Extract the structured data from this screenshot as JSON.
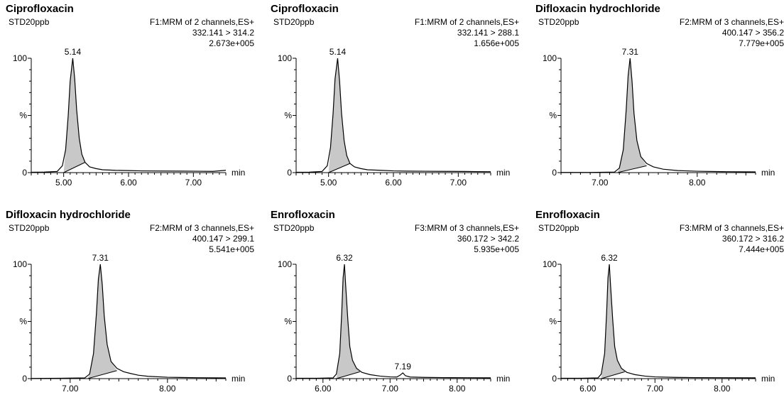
{
  "chart_data": [
    {
      "type": "line",
      "title": "Ciprofloxacin",
      "sample": "STD20ppb",
      "channel": "F1:MRM of 2 channels,ES+",
      "transition": "332.141 > 314.2",
      "intensity": "2.673e+005",
      "xlabel": "min",
      "xlim": [
        4.5,
        7.5
      ],
      "xticks": [
        "5.00",
        "6.00",
        "7.00"
      ],
      "xtick_values": [
        5.0,
        6.0,
        7.0
      ],
      "ylim": [
        0,
        100
      ],
      "yticks": [
        "0",
        "%",
        "100"
      ],
      "peaks": [
        {
          "x": 5.14,
          "label": "5.14",
          "height": 100
        }
      ],
      "series": [
        {
          "x": [
            4.5,
            4.7,
            4.9,
            4.98,
            5.03,
            5.07,
            5.1,
            5.14,
            5.17,
            5.2,
            5.24,
            5.28,
            5.33,
            5.4,
            5.5,
            5.6,
            5.8,
            6.0,
            6.2,
            6.5,
            6.8,
            7.1,
            7.3,
            7.5
          ],
          "values": [
            0.3,
            0.5,
            1,
            6,
            20,
            50,
            80,
            100,
            82,
            55,
            30,
            16,
            9,
            5,
            3.5,
            2.5,
            2,
            1.8,
            1.5,
            1.4,
            1.3,
            1.2,
            1.1,
            2
          ]
        }
      ],
      "baseline": [
        [
          5.0,
          0
        ],
        [
          5.33,
          9
        ]
      ]
    },
    {
      "type": "line",
      "title": "Ciprofloxacin",
      "sample": "STD20ppb",
      "channel": "F1:MRM of 2 channels,ES+",
      "transition": "332.141 > 288.1",
      "intensity": "1.656e+005",
      "xlabel": "min",
      "xlim": [
        4.5,
        7.5
      ],
      "xticks": [
        "5.00",
        "6.00",
        "7.00"
      ],
      "xtick_values": [
        5.0,
        6.0,
        7.0
      ],
      "ylim": [
        0,
        100
      ],
      "yticks": [
        "0",
        "%",
        "100"
      ],
      "peaks": [
        {
          "x": 5.14,
          "label": "5.14",
          "height": 100
        }
      ],
      "series": [
        {
          "x": [
            4.5,
            4.7,
            4.9,
            4.98,
            5.03,
            5.07,
            5.1,
            5.14,
            5.17,
            5.2,
            5.24,
            5.28,
            5.33,
            5.4,
            5.5,
            5.6,
            5.8,
            6.0,
            6.2,
            6.5,
            6.8,
            7.1,
            7.3,
            7.5
          ],
          "values": [
            0.3,
            0.4,
            1,
            6,
            22,
            52,
            82,
            100,
            80,
            52,
            28,
            15,
            8,
            5,
            3.5,
            2.5,
            2,
            1.5,
            1.3,
            1.2,
            1.1,
            1,
            0.9,
            0.8
          ]
        }
      ],
      "baseline": [
        [
          5.0,
          0
        ],
        [
          5.33,
          8
        ]
      ]
    },
    {
      "type": "line",
      "title": "Difloxacin hydrochloride",
      "sample": "STD20ppb",
      "channel": "F2:MRM of 3 channels,ES+",
      "transition": "400.147 > 356.2",
      "intensity": "7.779e+005",
      "xlabel": "min",
      "xlim": [
        6.6,
        8.6
      ],
      "xticks": [
        "7.00",
        "8.00"
      ],
      "xtick_values": [
        7.0,
        8.0
      ],
      "ylim": [
        0,
        100
      ],
      "yticks": [
        "0",
        "%",
        "100"
      ],
      "peaks": [
        {
          "x": 7.31,
          "label": "7.31",
          "height": 100
        }
      ],
      "series": [
        {
          "x": [
            6.6,
            6.9,
            7.15,
            7.2,
            7.24,
            7.27,
            7.29,
            7.31,
            7.33,
            7.35,
            7.38,
            7.42,
            7.48,
            7.55,
            7.65,
            7.8,
            8.0,
            8.3,
            8.6
          ],
          "values": [
            0.2,
            0.2,
            0.5,
            4,
            20,
            55,
            85,
            100,
            80,
            52,
            28,
            14,
            8,
            5,
            3,
            1.8,
            1.2,
            0.8,
            0.6
          ]
        }
      ],
      "baseline": [
        [
          7.18,
          0
        ],
        [
          7.48,
          6
        ]
      ]
    },
    {
      "type": "line",
      "title": "Difloxacin hydrochloride",
      "sample": "STD20ppb",
      "channel": "F2:MRM of 3 channels,ES+",
      "transition": "400.147 > 299.1",
      "intensity": "5.541e+005",
      "xlabel": "min",
      "xlim": [
        6.6,
        8.6
      ],
      "xticks": [
        "7.00",
        "8.00"
      ],
      "xtick_values": [
        7.0,
        8.0
      ],
      "ylim": [
        0,
        100
      ],
      "yticks": [
        "0",
        "%",
        "100"
      ],
      "peaks": [
        {
          "x": 7.31,
          "label": "7.31",
          "height": 100
        }
      ],
      "series": [
        {
          "x": [
            6.6,
            6.9,
            7.15,
            7.2,
            7.24,
            7.27,
            7.29,
            7.31,
            7.33,
            7.35,
            7.38,
            7.42,
            7.48,
            7.55,
            7.62,
            7.7,
            7.8,
            8.0,
            8.3,
            8.6
          ],
          "values": [
            0.2,
            0.3,
            0.6,
            4,
            22,
            57,
            87,
            100,
            82,
            55,
            30,
            15,
            9,
            6,
            4.5,
            3,
            2,
            1.2,
            0.8,
            0.6
          ]
        }
      ],
      "baseline": [
        [
          7.18,
          0
        ],
        [
          7.48,
          7
        ]
      ]
    },
    {
      "type": "line",
      "title": "Enrofloxacin",
      "sample": "STD20ppb",
      "channel": "F3:MRM of 3 channels,ES+",
      "transition": "360.172 > 342.2",
      "intensity": "5.935e+005",
      "xlabel": "min",
      "xlim": [
        5.6,
        8.5
      ],
      "xticks": [
        "6.00",
        "7.00",
        "8.00"
      ],
      "xtick_values": [
        6.0,
        7.0,
        8.0
      ],
      "ylim": [
        0,
        100
      ],
      "yticks": [
        "0",
        "%",
        "100"
      ],
      "peaks": [
        {
          "x": 6.32,
          "label": "6.32",
          "height": 100
        },
        {
          "x": 7.19,
          "label": "7.19",
          "height": 5
        }
      ],
      "series": [
        {
          "x": [
            5.6,
            5.9,
            6.15,
            6.2,
            6.25,
            6.28,
            6.3,
            6.32,
            6.34,
            6.37,
            6.4,
            6.44,
            6.5,
            6.58,
            6.7,
            6.85,
            7.0,
            7.1,
            7.15,
            7.19,
            7.23,
            7.3,
            7.5,
            7.8,
            8.1,
            8.5
          ],
          "values": [
            0.3,
            0.3,
            0.6,
            4,
            22,
            58,
            88,
            100,
            80,
            52,
            28,
            16,
            9,
            5.5,
            3.5,
            2.2,
            1.5,
            1.4,
            3,
            5,
            2.5,
            1.4,
            1.1,
            0.9,
            0.8,
            0.7
          ]
        }
      ],
      "baseline": [
        [
          6.2,
          0
        ],
        [
          6.55,
          6
        ]
      ]
    },
    {
      "type": "line",
      "title": "Enrofloxacin",
      "sample": "STD20ppb",
      "channel": "F3:MRM of 3 channels,ES+",
      "transition": "360.172 > 316.2",
      "intensity": "7.444e+005",
      "xlabel": "min",
      "xlim": [
        5.6,
        8.5
      ],
      "xticks": [
        "6.00",
        "7.00",
        "8.00"
      ],
      "xtick_values": [
        6.0,
        7.0,
        8.0
      ],
      "ylim": [
        0,
        100
      ],
      "yticks": [
        "0",
        "%",
        "100"
      ],
      "peaks": [
        {
          "x": 6.32,
          "label": "6.32",
          "height": 100
        }
      ],
      "series": [
        {
          "x": [
            5.6,
            5.9,
            6.15,
            6.2,
            6.25,
            6.28,
            6.3,
            6.32,
            6.34,
            6.37,
            6.4,
            6.44,
            6.5,
            6.58,
            6.7,
            6.85,
            7.0,
            7.3,
            7.6,
            8.0,
            8.5
          ],
          "values": [
            0.3,
            0.3,
            0.6,
            4,
            22,
            58,
            88,
            100,
            80,
            52,
            28,
            16,
            9,
            5.5,
            3.5,
            2.2,
            1.5,
            1.1,
            0.9,
            0.8,
            0.7
          ]
        }
      ],
      "baseline": [
        [
          6.2,
          0
        ],
        [
          6.55,
          6
        ]
      ]
    }
  ]
}
